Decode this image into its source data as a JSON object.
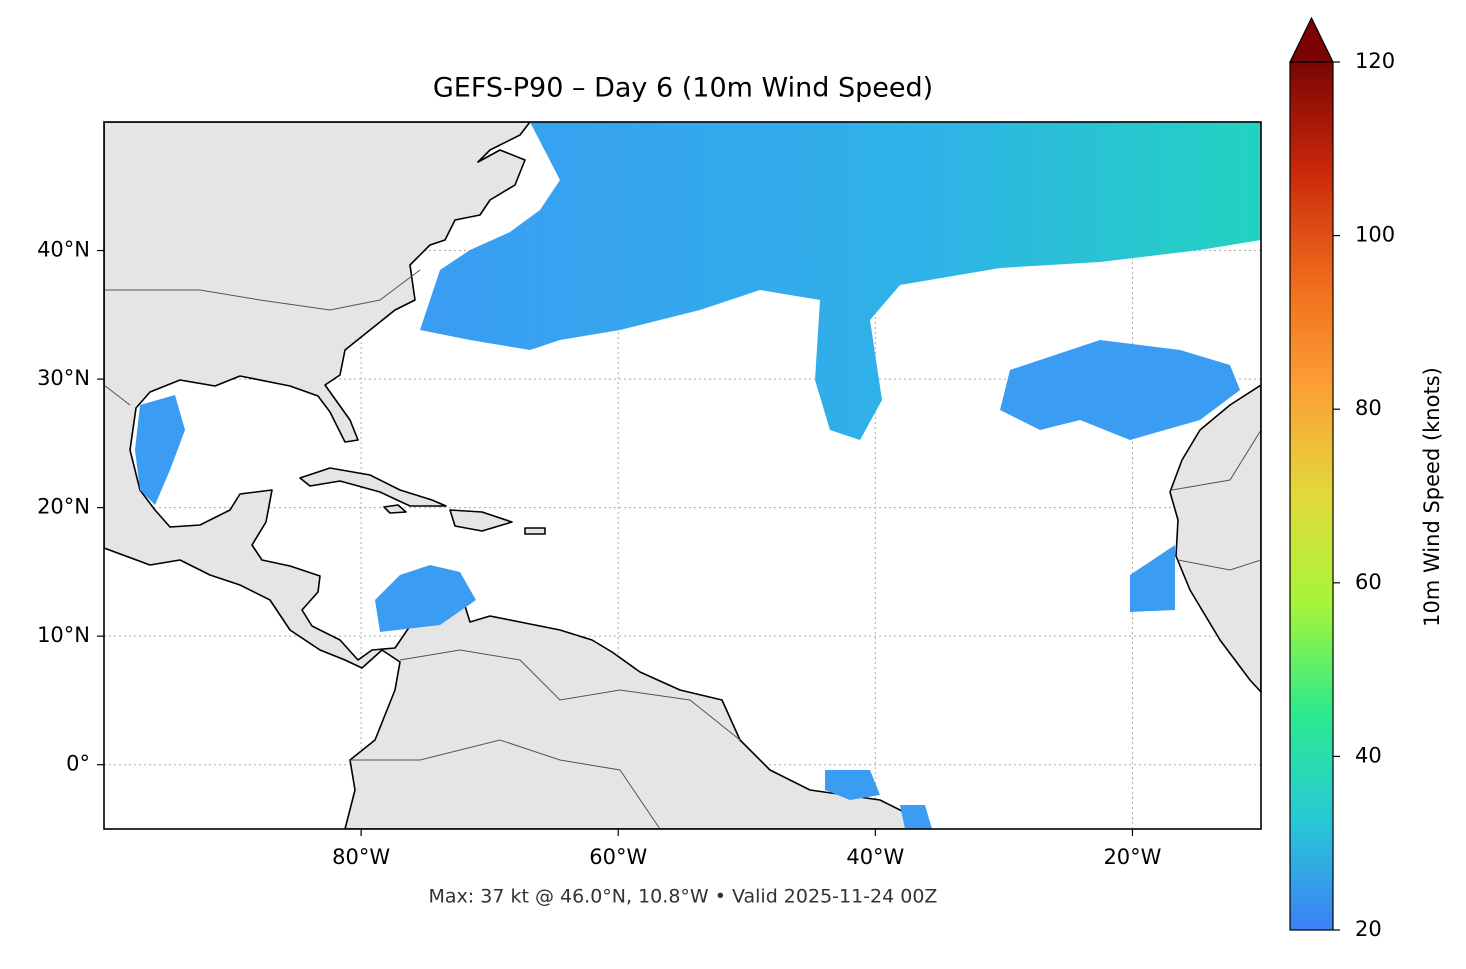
{
  "chart_data": {
    "type": "map",
    "title": "GEFS-P90 – Day 6 (10m Wind Speed)",
    "footer": "Max: 37 kt @ 46.0°N, 10.8°W • Valid 2025-11-24 00Z",
    "xlim": [
      -100,
      -10
    ],
    "ylim": [
      -5,
      50
    ],
    "xticks": [
      {
        "value": -80,
        "label": "80°W"
      },
      {
        "value": -60,
        "label": "60°W"
      },
      {
        "value": -40,
        "label": "40°W"
      },
      {
        "value": -20,
        "label": "20°W"
      }
    ],
    "yticks": [
      {
        "value": 0,
        "label": "0°"
      },
      {
        "value": 10,
        "label": "10°N"
      },
      {
        "value": 20,
        "label": "20°N"
      },
      {
        "value": 30,
        "label": "30°N"
      },
      {
        "value": 40,
        "label": "40°N"
      }
    ],
    "grid": true,
    "colorbar": {
      "label": "10m Wind Speed (knots)",
      "clim": [
        20,
        120
      ],
      "ticks": [
        20,
        40,
        60,
        80,
        100,
        120
      ],
      "colormap": [
        "#3d7ff5",
        "#28c8d8",
        "#2ceb8c",
        "#a6f53a",
        "#e2d93a",
        "#fba035",
        "#ef6a1c",
        "#c9290a",
        "#7a0403"
      ]
    }
  }
}
